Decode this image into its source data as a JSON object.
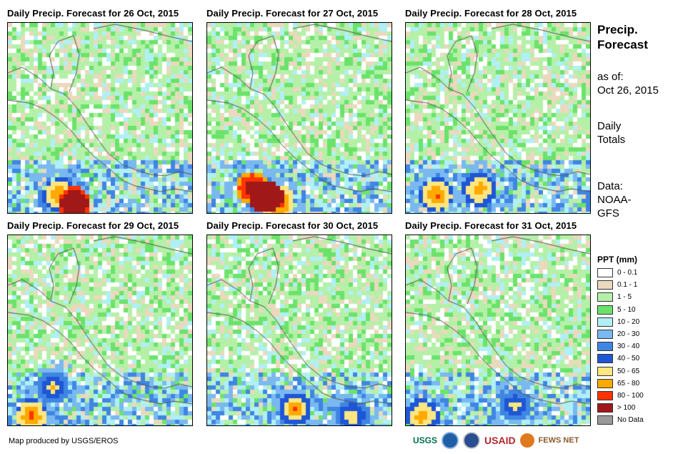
{
  "panels": [
    {
      "title": "Daily Precip. Forecast for 26 Oct, 2015"
    },
    {
      "title": "Daily Precip. Forecast for 27 Oct, 2015"
    },
    {
      "title": "Daily Precip. Forecast for 28 Oct, 2015"
    },
    {
      "title": "Daily Precip. Forecast for 29 Oct, 2015"
    },
    {
      "title": "Daily Precip. Forecast for 30 Oct, 2015"
    },
    {
      "title": "Daily Precip. Forecast for 31 Oct, 2015"
    }
  ],
  "side": {
    "title_line1": "Precip.",
    "title_line2": "Forecast",
    "asof_label": "as of:",
    "asof_date": "Oct 26, 2015",
    "totals_line1": "Daily",
    "totals_line2": "Totals",
    "data_line1": "Data:",
    "data_line2": "NOAA-",
    "data_line3": "GFS"
  },
  "legend": {
    "title": "PPT (mm)",
    "items": [
      {
        "label": "0 - 0.1",
        "color": "#ffffff"
      },
      {
        "label": "0.1 - 1",
        "color": "#ead9bd"
      },
      {
        "label": "1 - 5",
        "color": "#b5f0a8"
      },
      {
        "label": "5 - 10",
        "color": "#6be36b"
      },
      {
        "label": "10 - 20",
        "color": "#b0f0f5"
      },
      {
        "label": "20 - 30",
        "color": "#7ab8f0"
      },
      {
        "label": "30 - 40",
        "color": "#3f86e3"
      },
      {
        "label": "40 - 50",
        "color": "#1e56d6"
      },
      {
        "label": "50 - 65",
        "color": "#ffe680"
      },
      {
        "label": "65 - 80",
        "color": "#ffaa00"
      },
      {
        "label": "80 - 100",
        "color": "#ff3300"
      },
      {
        "label": "> 100",
        "color": "#a01818"
      },
      {
        "label": "No Data",
        "color": "#9a9a9a"
      }
    ]
  },
  "credit": "Map produced by USGS/EROS",
  "logos": {
    "usgs": "USGS",
    "usaid": "USAID",
    "fews": "FEWS NET"
  }
}
